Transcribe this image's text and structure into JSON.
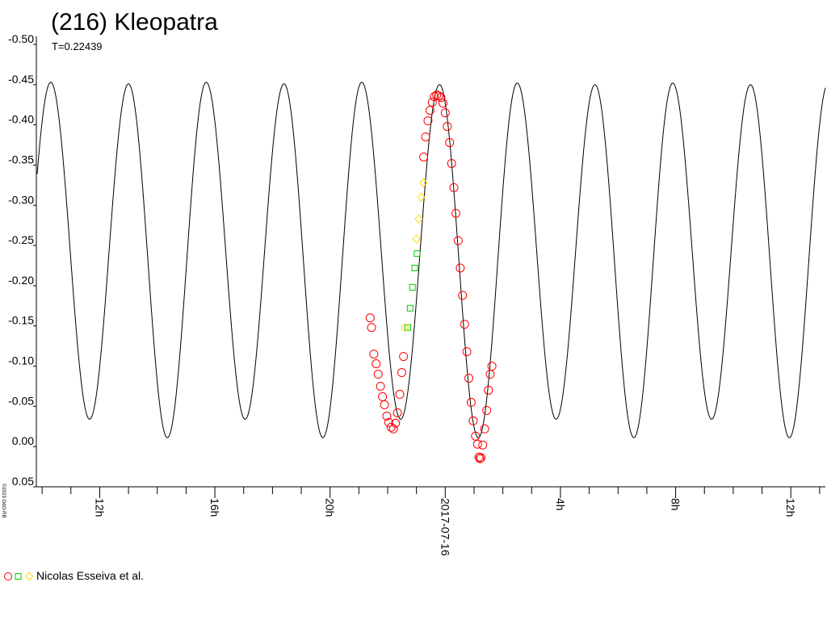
{
  "title": "(216) Kleopatra",
  "subtitle": "T=0.22439",
  "copyright": "©2023 OdO-RB",
  "legend": {
    "label": "Nicolas Esseiva et al.",
    "markers": [
      {
        "shape": "circle",
        "color": "#ff0000"
      },
      {
        "shape": "square",
        "color": "#00cc00"
      },
      {
        "shape": "diamond",
        "color": "#ffdd00"
      }
    ]
  },
  "chart_data": {
    "type": "scatter",
    "title": "(216) Kleopatra",
    "subtitle": "T=0.22439",
    "xlabel": "",
    "ylabel": "",
    "x_unit": "hours relative to 2017-07-16 00:00",
    "xlim": [
      -14.2,
      13.2
    ],
    "ylim": [
      0.05,
      -0.5
    ],
    "y_inverted": true,
    "y_ticks": [
      {
        "value": -0.5,
        "label": "-0.50"
      },
      {
        "value": -0.45,
        "label": "-0.45"
      },
      {
        "value": -0.4,
        "label": "-0.40"
      },
      {
        "value": -0.35,
        "label": "-0.35"
      },
      {
        "value": -0.3,
        "label": "-0.30"
      },
      {
        "value": -0.25,
        "label": "-0.25"
      },
      {
        "value": -0.2,
        "label": "-0.20"
      },
      {
        "value": -0.15,
        "label": "-0.15"
      },
      {
        "value": -0.1,
        "label": "-0.10"
      },
      {
        "value": -0.05,
        "label": "-0.05"
      },
      {
        "value": 0.0,
        "label": "0.00"
      },
      {
        "value": 0.05,
        "label": "0.05"
      }
    ],
    "x_ticks": [
      {
        "value": -12,
        "label": "12h"
      },
      {
        "value": -8,
        "label": "16h"
      },
      {
        "value": -4,
        "label": "20h"
      },
      {
        "value": 0,
        "label": "2017-07-16"
      },
      {
        "value": 4,
        "label": "4h"
      },
      {
        "value": 8,
        "label": "8h"
      },
      {
        "value": 12,
        "label": "12h"
      }
    ],
    "model_curve": {
      "color": "#000000",
      "period_hours": 2.6928,
      "maxima": [
        {
          "x": -13.7,
          "y": -0.453
        },
        {
          "x": -11.0,
          "y": -0.451
        },
        {
          "x": -8.3,
          "y": -0.453
        },
        {
          "x": -5.6,
          "y": -0.451
        },
        {
          "x": -2.9,
          "y": -0.453
        },
        {
          "x": -0.2,
          "y": -0.45
        },
        {
          "x": 2.5,
          "y": -0.452
        },
        {
          "x": 5.2,
          "y": -0.45
        },
        {
          "x": 7.9,
          "y": -0.452
        },
        {
          "x": 10.6,
          "y": -0.45
        },
        {
          "x": 13.3,
          "y": -0.452
        }
      ],
      "minima": [
        {
          "x": -12.35,
          "y": -0.034
        },
        {
          "x": -9.65,
          "y": -0.011
        },
        {
          "x": -6.95,
          "y": -0.034
        },
        {
          "x": -4.25,
          "y": -0.011
        },
        {
          "x": -1.55,
          "y": -0.034
        },
        {
          "x": 1.15,
          "y": -0.011
        },
        {
          "x": 3.85,
          "y": -0.034
        },
        {
          "x": 6.55,
          "y": -0.011
        },
        {
          "x": 9.25,
          "y": -0.034
        },
        {
          "x": 11.95,
          "y": -0.011
        }
      ]
    },
    "series": [
      {
        "name": "Nicolas Esseiva et al.",
        "marker": "circle",
        "color": "#ff0000",
        "points": [
          [
            -2.61,
            -0.16
          ],
          [
            -2.56,
            -0.148
          ],
          [
            -2.48,
            -0.115
          ],
          [
            -2.4,
            -0.103
          ],
          [
            -2.33,
            -0.09
          ],
          [
            -2.25,
            -0.075
          ],
          [
            -2.18,
            -0.062
          ],
          [
            -2.11,
            -0.052
          ],
          [
            -2.03,
            -0.038
          ],
          [
            -1.96,
            -0.03
          ],
          [
            -1.88,
            -0.024
          ],
          [
            -1.8,
            -0.022
          ],
          [
            -1.73,
            -0.029
          ],
          [
            -1.66,
            -0.042
          ],
          [
            -1.58,
            -0.065
          ],
          [
            -1.51,
            -0.092
          ],
          [
            -1.45,
            -0.112
          ],
          [
            -0.75,
            -0.36
          ],
          [
            -0.68,
            -0.385
          ],
          [
            -0.6,
            -0.405
          ],
          [
            -0.53,
            -0.418
          ],
          [
            -0.45,
            -0.428
          ],
          [
            -0.38,
            -0.435
          ],
          [
            -0.3,
            -0.437
          ],
          [
            -0.23,
            -0.436
          ],
          [
            -0.15,
            -0.434
          ],
          [
            -0.08,
            -0.427
          ],
          [
            0.0,
            -0.415
          ],
          [
            0.07,
            -0.398
          ],
          [
            0.15,
            -0.378
          ],
          [
            0.22,
            -0.352
          ],
          [
            0.3,
            -0.322
          ],
          [
            0.37,
            -0.29
          ],
          [
            0.45,
            -0.256
          ],
          [
            0.52,
            -0.222
          ],
          [
            0.6,
            -0.188
          ],
          [
            0.67,
            -0.152
          ],
          [
            0.75,
            -0.118
          ],
          [
            0.82,
            -0.085
          ],
          [
            0.9,
            -0.055
          ],
          [
            0.97,
            -0.032
          ],
          [
            1.05,
            -0.013
          ],
          [
            1.12,
            -0.003
          ],
          [
            1.17,
            0.013
          ],
          [
            1.2,
            0.015
          ],
          [
            1.24,
            0.014
          ],
          [
            1.3,
            -0.002
          ],
          [
            1.37,
            -0.022
          ],
          [
            1.44,
            -0.045
          ],
          [
            1.5,
            -0.07
          ],
          [
            1.56,
            -0.09
          ],
          [
            1.62,
            -0.1
          ]
        ]
      },
      {
        "name": "",
        "marker": "square",
        "color": "#00cc00",
        "points": [
          [
            -1.3,
            -0.148
          ],
          [
            -1.22,
            -0.172
          ],
          [
            -1.14,
            -0.198
          ],
          [
            -1.06,
            -0.222
          ],
          [
            -0.98,
            -0.24
          ]
        ]
      },
      {
        "name": "",
        "marker": "diamond",
        "color": "#ffdd00",
        "points": [
          [
            -1.4,
            -0.148
          ],
          [
            -1.0,
            -0.258
          ],
          [
            -0.92,
            -0.283
          ],
          [
            -0.84,
            -0.31
          ],
          [
            -0.76,
            -0.328
          ]
        ]
      }
    ]
  }
}
